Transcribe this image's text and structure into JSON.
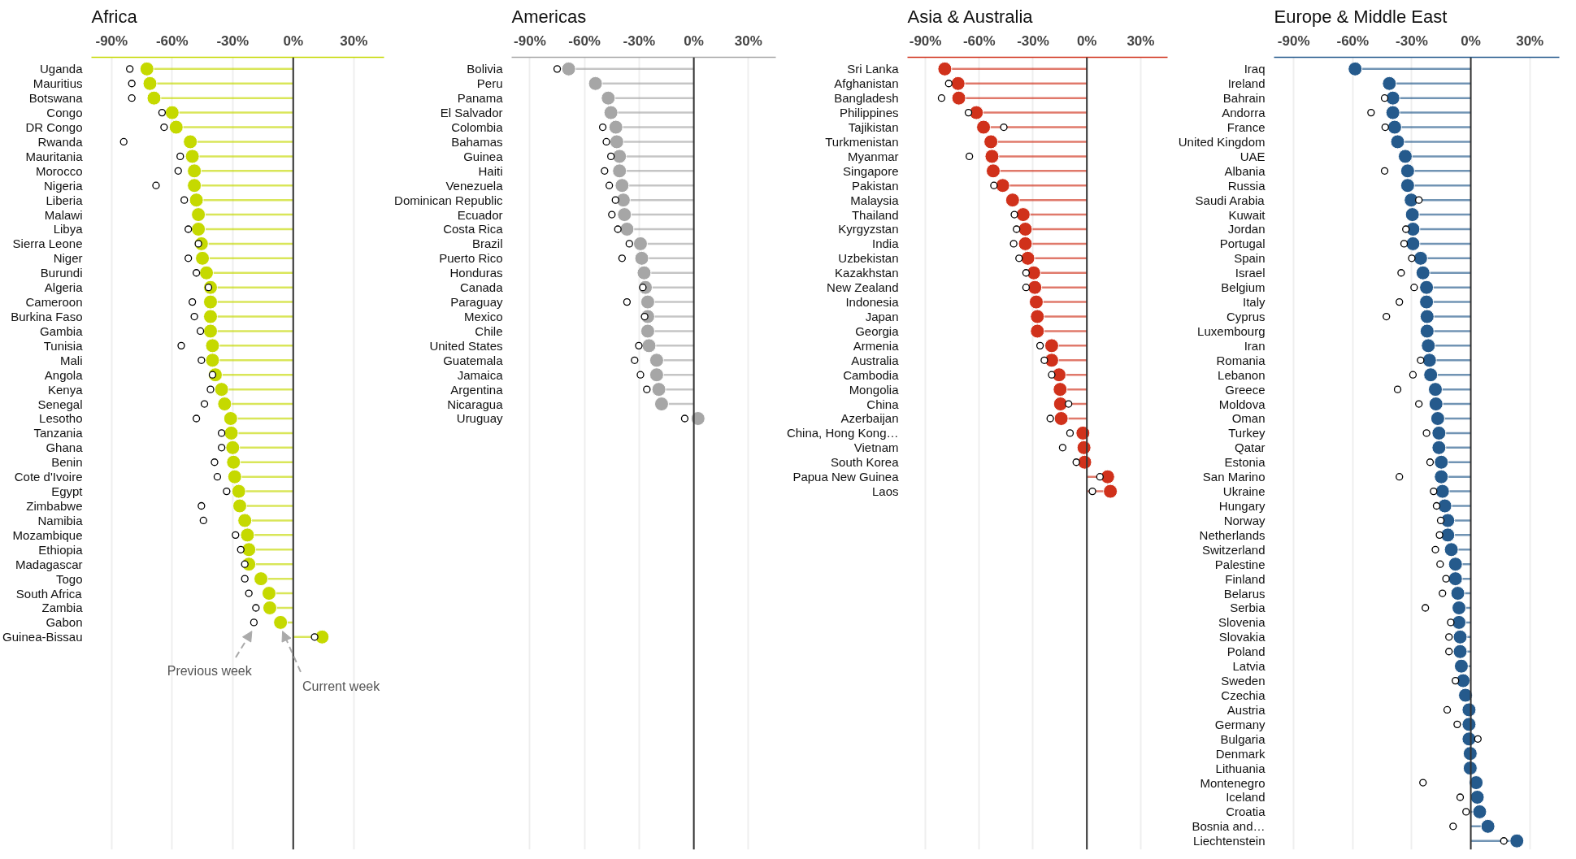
{
  "chart_data": [
    {
      "type": "lollipop",
      "title": "Africa",
      "orientation": "horizontal",
      "grid": "x",
      "xlim": [
        -100,
        45
      ],
      "xticks": [
        {
          "value": -90,
          "label": "-90%"
        },
        {
          "value": -60,
          "label": "-60%"
        },
        {
          "value": -30,
          "label": "-30%"
        },
        {
          "value": 0,
          "label": "0%"
        },
        {
          "value": 30,
          "label": "30%"
        }
      ],
      "ref_lines": [
        {
          "axis": "x",
          "value": 0,
          "color": "#333333"
        }
      ],
      "categories": [
        "Uganda",
        "Mauritius",
        "Botswana",
        "Congo",
        "DR Congo",
        "Rwanda",
        "Mauritania",
        "Morocco",
        "Nigeria",
        "Liberia",
        "Malawi",
        "Libya",
        "Sierra Leone",
        "Niger",
        "Burundi",
        "Algeria",
        "Cameroon",
        "Burkina Faso",
        "Gambia",
        "Tunisia",
        "Mali",
        "Angola",
        "Kenya",
        "Senegal",
        "Lesotho",
        "Tanzania",
        "Ghana",
        "Benin",
        "Cote d'Ivoire",
        "Egypt",
        "Zimbabwe",
        "Namibia",
        "Mozambique",
        "Ethiopia",
        "Madagascar",
        "Togo",
        "South Africa",
        "Zambia",
        "Gabon",
        "Guinea-Bissau"
      ],
      "series": [
        {
          "color": "#c5d900",
          "values": [
            -72.5,
            -71,
            -69,
            -60,
            -58,
            -51,
            -50,
            -49,
            -49,
            -48,
            -47,
            -47,
            -45.5,
            -45,
            -43,
            -41,
            -41,
            -41,
            -41,
            -40,
            -40,
            -38.6,
            -35.5,
            -34,
            -31,
            -30.7,
            -30,
            -29.6,
            -29,
            -27,
            -26.5,
            -24,
            -22.7,
            -22,
            -22,
            -16,
            -12,
            -11.6,
            -6.3,
            14.3
          ]
        },
        {
          "type": "scatter",
          "marker": "circle",
          "color": "#000000",
          "values": [
            -81,
            -80,
            -80,
            -65,
            -64,
            -84,
            -56,
            -57,
            -68,
            -54,
            null,
            -52,
            -47,
            -52,
            -48,
            -42,
            -50,
            -49,
            -46,
            -55.5,
            -45.5,
            -40,
            -41,
            -44,
            -48,
            -35.5,
            -35.5,
            -39,
            -37.6,
            -33,
            -45.5,
            -44.5,
            -28.6,
            -26,
            -24,
            -24,
            -22,
            -18.5,
            -19.5,
            10.6
          ]
        }
      ],
      "annotations": [
        {
          "text": "Previous week",
          "x": -19.5,
          "y": "Gabon"
        },
        {
          "text": "Current week",
          "x": -6.3,
          "y": "Gabon"
        }
      ]
    },
    {
      "type": "lollipop",
      "title": "Americas",
      "orientation": "horizontal",
      "grid": "x",
      "xlim": [
        -100,
        45
      ],
      "xticks": [
        {
          "value": -90,
          "label": "-90%"
        },
        {
          "value": -60,
          "label": "-60%"
        },
        {
          "value": -30,
          "label": "-30%"
        },
        {
          "value": 0,
          "label": "0%"
        },
        {
          "value": 30,
          "label": "30%"
        }
      ],
      "ref_lines": [
        {
          "axis": "x",
          "value": 0,
          "color": "#333333"
        }
      ],
      "categories": [
        "Bolivia",
        "Peru",
        "Panama",
        "El Salvador",
        "Colombia",
        "Bahamas",
        "Guinea",
        "Haiti",
        "Venezuela",
        "Dominican Republic",
        "Ecuador",
        "Costa Rica",
        "Brazil",
        "Puerto Rico",
        "Honduras",
        "Canada",
        "Paraguay",
        "Mexico",
        "Chile",
        "United States",
        "Guatemala",
        "Jamaica",
        "Argentina",
        "Nicaragua",
        "Uruguay"
      ],
      "series": [
        {
          "color": "#a6a6a6",
          "values": [
            -68.7,
            -54,
            -47,
            -45.5,
            -42.8,
            -42.3,
            -40.8,
            -40.8,
            -39.4,
            -38.7,
            -38.1,
            -36.7,
            -29.3,
            -28.6,
            -27.3,
            -26.6,
            -25.3,
            -25.3,
            -25.3,
            -24.6,
            -20.4,
            -20.4,
            -19.2,
            -17.7,
            2.3
          ]
        },
        {
          "type": "scatter",
          "marker": "circle",
          "color": "#000000",
          "values": [
            -75,
            null,
            null,
            null,
            -50,
            -48,
            -45.5,
            -49,
            -46.4,
            -43,
            -45,
            -41.7,
            -35.4,
            -39.4,
            null,
            -28,
            -36.7,
            -27,
            null,
            -30.2,
            -32.5,
            -29.3,
            -25.8,
            null,
            -5
          ]
        }
      ]
    },
    {
      "type": "lollipop",
      "title": "Asia & Australia",
      "orientation": "horizontal",
      "grid": "x",
      "xlim": [
        -100,
        45
      ],
      "xticks": [
        {
          "value": -90,
          "label": "-90%"
        },
        {
          "value": -60,
          "label": "-60%"
        },
        {
          "value": -30,
          "label": "-30%"
        },
        {
          "value": 0,
          "label": "0%"
        },
        {
          "value": 30,
          "label": "30%"
        }
      ],
      "ref_lines": [
        {
          "axis": "x",
          "value": 0,
          "color": "#333333"
        }
      ],
      "categories": [
        "Sri Lanka",
        "Afghanistan",
        "Bangladesh",
        "Philippines",
        "Tajikistan",
        "Turkmenistan",
        "Myanmar",
        "Singapore",
        "Pakistan",
        "Malaysia",
        "Thailand",
        "Kyrgyzstan",
        "India",
        "Uzbekistan",
        "Kazakhstan",
        "New Zealand",
        "Indonesia",
        "Japan",
        "Georgia",
        "Armenia",
        "Australia",
        "Cambodia",
        "Mongolia",
        "China",
        "Azerbaijan",
        "China, Hong Kong…",
        "Vietnam",
        "South Korea",
        "Papua New Guinea",
        "Laos"
      ],
      "series": [
        {
          "color": "#d0311b",
          "values": [
            -79.2,
            -71.8,
            -71.4,
            -61.6,
            -57.6,
            -53.5,
            -52.9,
            -52.2,
            -46.9,
            -41.4,
            -35.5,
            -34.3,
            -34.3,
            -32.9,
            -29.6,
            -29,
            -28.2,
            -27.6,
            -27.6,
            -19.6,
            -19.6,
            -15.5,
            -14.9,
            -14.7,
            -14.3,
            -2.2,
            -1.6,
            -1.2,
            11.6,
            13.1
          ]
        },
        {
          "type": "scatter",
          "marker": "circle",
          "color": "#000000",
          "values": [
            null,
            -77,
            -81,
            -66,
            -46.3,
            null,
            -65.5,
            null,
            -51.8,
            null,
            -40.4,
            -39.2,
            -40.8,
            -37.8,
            -33.9,
            -33.9,
            null,
            null,
            null,
            -26.1,
            -23.7,
            -19.6,
            null,
            -10.2,
            -20.4,
            -9.4,
            -13.5,
            -5.9,
            7.3,
            3.1
          ]
        }
      ]
    },
    {
      "type": "lollipop",
      "title": "Europe & Middle East",
      "orientation": "horizontal",
      "grid": "x",
      "xlim": [
        -100,
        45
      ],
      "xticks": [
        {
          "value": -90,
          "label": "-90%"
        },
        {
          "value": -60,
          "label": "-60%"
        },
        {
          "value": -30,
          "label": "-30%"
        },
        {
          "value": 0,
          "label": "0%"
        },
        {
          "value": 30,
          "label": "30%"
        }
      ],
      "ref_lines": [
        {
          "axis": "x",
          "value": 0,
          "color": "#333333"
        }
      ],
      "categories": [
        "Iraq",
        "Ireland",
        "Bahrain",
        "Andorra",
        "France",
        "United Kingdom",
        "UAE",
        "Albania",
        "Russia",
        "Saudi Arabia",
        "Kuwait",
        "Jordan",
        "Portugal",
        "Spain",
        "Israel",
        "Belgium",
        "Italy",
        "Cyprus",
        "Luxembourg",
        "Iran",
        "Romania",
        "Lebanon",
        "Greece",
        "Moldova",
        "Oman",
        "Turkey",
        "Qatar",
        "Estonia",
        "San Marino",
        "Ukraine",
        "Hungary",
        "Norway",
        "Netherlands",
        "Switzerland",
        "Palestine",
        "Finland",
        "Belarus",
        "Serbia",
        "Slovenia",
        "Slovakia",
        "Poland",
        "Latvia",
        "Sweden",
        "Czechia",
        "Austria",
        "Germany",
        "Bulgaria",
        "Denmark",
        "Lithuania",
        "Montenegro",
        "Iceland",
        "Croatia",
        "Bosnia and…",
        "Liechtenstein"
      ],
      "series": [
        {
          "color": "#255a8c",
          "values": [
            -58.8,
            -41.4,
            -39.6,
            -39.6,
            -38.7,
            -37.2,
            -33.3,
            -32.1,
            -32.1,
            -30.3,
            -29.7,
            -29.4,
            -29.4,
            -25.5,
            -24.3,
            -22.5,
            -22.5,
            -22.2,
            -22.2,
            -21.6,
            -21,
            -20.4,
            -18,
            -17.7,
            -16.8,
            -16.2,
            -16.2,
            -15,
            -15,
            -14.4,
            -13.2,
            -11.7,
            -11.7,
            -9.9,
            -7.8,
            -7.8,
            -6.6,
            -6,
            -6,
            -5.4,
            -5.4,
            -4.8,
            -3.9,
            -2.7,
            -0.9,
            -0.9,
            -0.9,
            -0.3,
            -0.3,
            2.7,
            3.3,
            4.5,
            8.7,
            23.4
          ]
        },
        {
          "type": "scatter",
          "marker": "circle",
          "color": "#000000",
          "values": [
            null,
            null,
            -43.8,
            -50.7,
            -43.5,
            null,
            null,
            -43.8,
            null,
            -26.4,
            null,
            -33,
            -33.9,
            -30,
            -35.4,
            -28.8,
            -36.3,
            -42.9,
            null,
            null,
            -25.5,
            -29.4,
            -37.2,
            -26.4,
            null,
            -22.5,
            null,
            -20.7,
            -36.3,
            -18.9,
            -17.4,
            -15.3,
            -15.9,
            -18,
            -15.6,
            -12.6,
            -14.4,
            -23.1,
            -10.2,
            -11.1,
            -11.1,
            null,
            -7.8,
            null,
            -12,
            -6.9,
            3.6,
            null,
            null,
            -24.3,
            -5.4,
            -2.4,
            -9,
            16.8
          ]
        }
      ]
    }
  ]
}
